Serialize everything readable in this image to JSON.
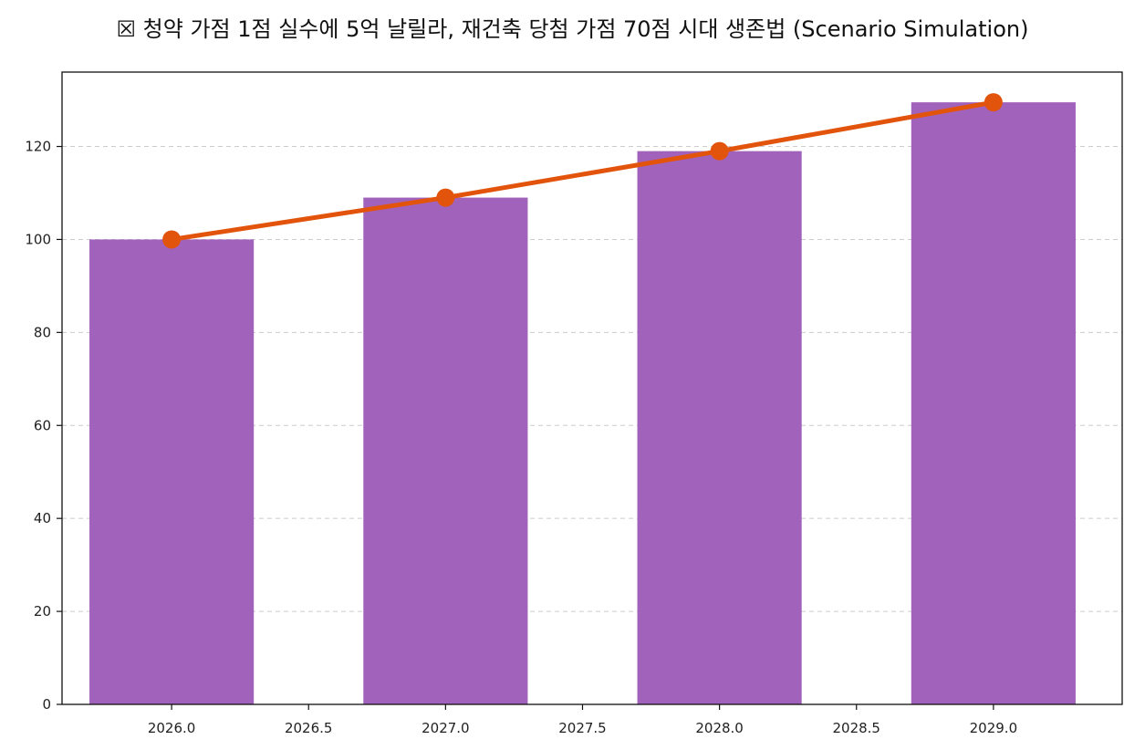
{
  "chart_data": {
    "type": "bar",
    "title": "☒ 청약 가점 1점 실수에 5억 날릴라, 재건축 당첨 가점 70점 시대 생존법 (Scenario Simulation)",
    "xlabel": "",
    "ylabel": "",
    "x": [
      2026,
      2027,
      2028,
      2029
    ],
    "series": [
      {
        "kind": "bar",
        "values": [
          100,
          109,
          119,
          129.5
        ],
        "color": "#a162bb"
      },
      {
        "kind": "line",
        "values": [
          100,
          109,
          119,
          129.5
        ],
        "color": "#e2540c"
      }
    ],
    "xlim": [
      2025.6,
      2029.47
    ],
    "ylim": [
      0,
      136
    ],
    "xticks": [
      "2026.0",
      "2026.5",
      "2027.0",
      "2027.5",
      "2028.0",
      "2028.5",
      "2029.0"
    ],
    "xtick_values": [
      2026,
      2026.5,
      2027,
      2027.5,
      2028,
      2028.5,
      2029
    ],
    "yticks": [
      0,
      20,
      40,
      60,
      80,
      100,
      120
    ],
    "grid": "y-dashed",
    "legend": "none"
  }
}
